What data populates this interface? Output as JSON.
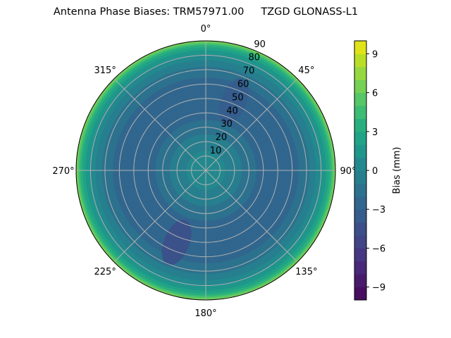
{
  "chart_data": {
    "type": "heatmap",
    "subtype": "polar-contourf",
    "title_left": "Antenna Phase Biases: TRM57971.00",
    "title_right": "TZGD GLONASS-L1",
    "angular_ticks": [
      "0°",
      "45°",
      "90°",
      "135°",
      "180°",
      "225°",
      "270°",
      "315°"
    ],
    "radial_ticks": [
      "10",
      "20",
      "30",
      "40",
      "50",
      "60",
      "70",
      "80",
      "90"
    ],
    "radial_range": [
      0,
      90
    ],
    "angular_direction": "clockwise",
    "angular_zero": "top",
    "colorbar": {
      "label": "Bias (mm)",
      "range": [
        -10,
        10
      ],
      "levels": 20,
      "ticks": [
        "9",
        "6",
        "3",
        "0",
        "−3",
        "−6",
        "−9"
      ],
      "tick_values": [
        9,
        6,
        3,
        0,
        -3,
        -6,
        -9
      ],
      "colormap": [
        "#470d60",
        "#481a6c",
        "#482878",
        "#453781",
        "#414487",
        "#3c4f8a",
        "#365c8d",
        "#31668e",
        "#2c728e",
        "#277f8e",
        "#23898e",
        "#1f968b",
        "#20a386",
        "#29af7f",
        "#3dbc74",
        "#56c667",
        "#75d054",
        "#95d840",
        "#bade28",
        "#dfe318"
      ]
    },
    "radial_profile": {
      "zenith_deg": [
        0,
        10,
        20,
        30,
        40,
        50,
        60,
        70,
        75,
        80,
        85,
        88,
        90
      ],
      "bias_mm": [
        0.5,
        0.3,
        -0.5,
        -1.5,
        -2.5,
        -2.8,
        -2.5,
        -1.5,
        -0.5,
        0.8,
        2.5,
        4.5,
        6.5
      ]
    },
    "features": [
      {
        "azimuth_deg": 202,
        "zenith_deg": 54,
        "bias_mm": -4.5
      },
      {
        "azimuth_deg": 22,
        "zenith_deg": 52,
        "bias_mm": -3.5
      }
    ],
    "grid": true
  }
}
